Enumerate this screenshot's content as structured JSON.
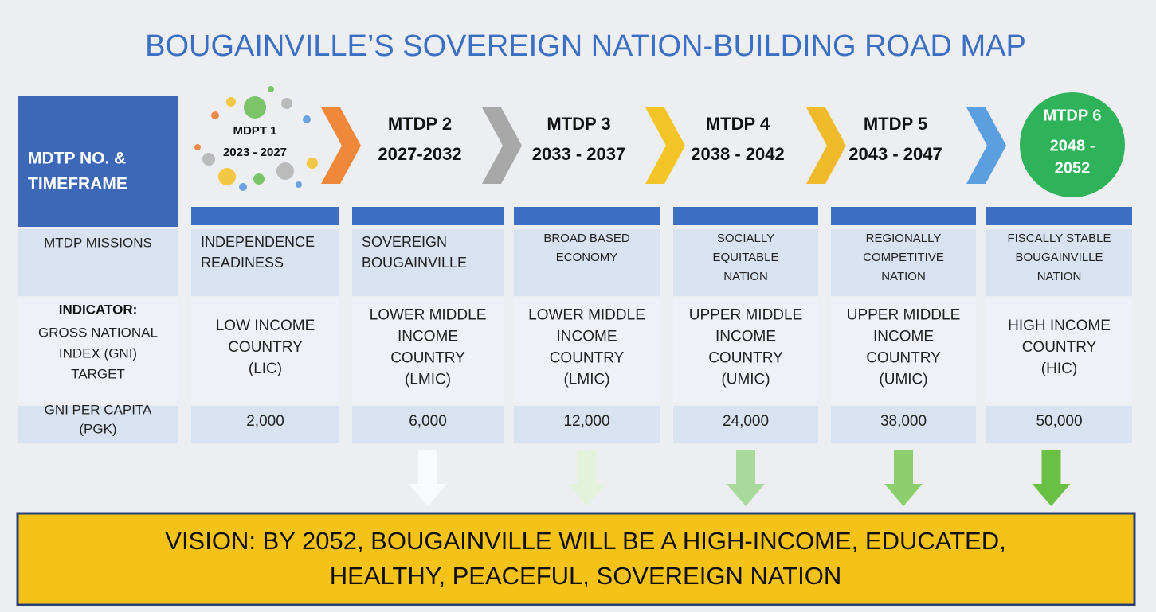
{
  "title": "BOUGAINVILLE’S  SOVEREIGN NATION-BUILDING ROAD MAP",
  "header_label": [
    "MDTP NO. &",
    "TIMEFRAME"
  ],
  "row_labels": {
    "missions": [
      "MTDP MISSIONS"
    ],
    "indicator": {
      "heading": "INDICATOR:",
      "lines": [
        "GROSS NATIONAL",
        "INDEX (GNI)",
        "TARGET"
      ]
    },
    "gni": [
      "GNI PER CAPITA",
      "(PGK)"
    ]
  },
  "phases": [
    {
      "name": "MDPT 1",
      "period": [
        "2023 - 2027"
      ],
      "mission": [
        "INDEPENDENCE",
        "READINESS"
      ],
      "indicator": [
        "LOW INCOME",
        "COUNTRY",
        "(LIC)"
      ],
      "gni": "2,000"
    },
    {
      "name": "MTDP 2",
      "period": [
        "2027-2032"
      ],
      "mission": [
        "SOVEREIGN",
        "BOUGAINVILLE"
      ],
      "indicator": [
        "LOWER MIDDLE",
        "INCOME",
        "COUNTRY",
        "(LMIC)"
      ],
      "gni": "6,000"
    },
    {
      "name": "MTDP 3",
      "period": [
        "2033 - 2037"
      ],
      "mission": [
        "BROAD BASED",
        "ECONOMY"
      ],
      "indicator": [
        "LOWER MIDDLE",
        "INCOME",
        "COUNTRY",
        "(LMIC)"
      ],
      "gni": "12,000"
    },
    {
      "name": "MTDP 4",
      "period": [
        "2038 - 2042"
      ],
      "mission": [
        "SOCIALLY",
        "EQUITABLE",
        "NATION"
      ],
      "indicator": [
        "UPPER MIDDLE",
        "INCOME",
        "COUNTRY",
        "(UMIC)"
      ],
      "gni": "24,000"
    },
    {
      "name": "MTDP 5",
      "period": [
        "2043 - 2047"
      ],
      "mission": [
        "REGIONALLY",
        "COMPETITIVE",
        "NATION"
      ],
      "indicator": [
        "UPPER MIDDLE",
        "INCOME",
        "COUNTRY",
        "(UMIC)"
      ],
      "gni": "38,000"
    },
    {
      "name": "MTDP 6",
      "period": [
        "2048 -",
        "2052"
      ],
      "mission": [
        "FISCALLY STABLE",
        "BOUGAINVILLE",
        "NATION"
      ],
      "indicator": [
        "HIGH INCOME",
        "COUNTRY",
        "(HIC)"
      ],
      "gni": "50,000"
    }
  ],
  "vision": [
    "VISION: BY 2052, BOUGAINVILLE WILL BE A HIGH-INCOME, EDUCATED,",
    "HEALTHY, PEACEFUL, SOVEREIGN NATION"
  ]
}
